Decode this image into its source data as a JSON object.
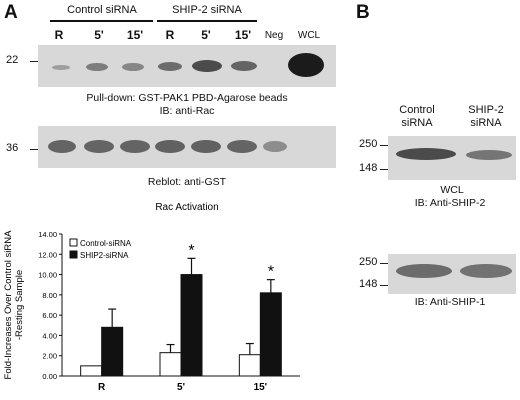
{
  "panel_a": {
    "letter": "A",
    "group_control": "Control siRNA",
    "group_ship2": "SHIP-2 siRNA",
    "lanes": [
      "R",
      "5'",
      "15'",
      "R",
      "5'",
      "15'",
      "Neg",
      "WCL"
    ],
    "mw_top": "22",
    "mw_bottom": "36",
    "caption_pulldown": "Pull-down: GST-PAK1 PBD-Agarose beads",
    "caption_ib_rac": "IB: anti-Rac",
    "caption_reblot": "Reblot: anti-GST"
  },
  "panel_b": {
    "letter": "B",
    "col_control_line1": "Control",
    "col_control_line2": "siRNA",
    "col_ship2_line1": "SHIP-2",
    "col_ship2_line2": "siRNA",
    "mw_250_top": "250",
    "mw_148_top": "148",
    "caption_wcl": "WCL",
    "caption_ib_ship2": "IB: Anti-SHIP-2",
    "mw_250_bottom": "250",
    "mw_148_bottom": "148",
    "caption_ib_ship1": "IB: Anti-SHIP-1"
  },
  "chart_data": {
    "type": "bar",
    "title": "Rac    Activation",
    "ylabel": "Fold-Increases Over Control siRNA -Resting Sample",
    "xlabel": "",
    "categories": [
      "R",
      "5'",
      "15'"
    ],
    "ylim": [
      0,
      14
    ],
    "yticks": [
      "0.00",
      "2.00",
      "4.00",
      "6.00",
      "8.00",
      "10.00",
      "12.00",
      "14.00"
    ],
    "series": [
      {
        "name": "Control-siRNA",
        "values": [
          1.0,
          2.3,
          2.1
        ],
        "errors": [
          0,
          0.8,
          1.1
        ],
        "color": "#ffffff"
      },
      {
        "name": "SHIP2-siRNA",
        "values": [
          4.8,
          10.0,
          8.2
        ],
        "errors": [
          1.8,
          1.6,
          1.3
        ],
        "color": "#111111"
      }
    ],
    "significance": [
      "",
      "*",
      "*"
    ],
    "legend_position": "top-left"
  }
}
